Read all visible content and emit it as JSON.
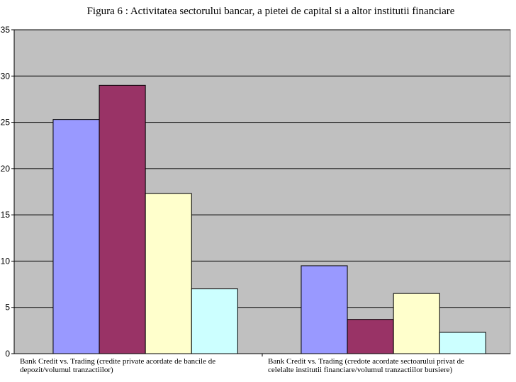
{
  "chart_data": {
    "type": "bar",
    "title": "Figura 6 : Activitatea sectorului bancar, a pietei de capital si a altor institutii financiare",
    "categories": [
      [
        "Bank Credit vs. Trading (credite private acordate de bancile de",
        "depozit/volumul tranzactiilor)"
      ],
      [
        "Bank Credit vs. Trading (credote acordate sectoarului privat de",
        "celelalte institutii financiare/volumul tranzactiilor bursiere)"
      ]
    ],
    "series": [
      {
        "values": [
          25.3,
          9.5
        ],
        "color": "#9999ff"
      },
      {
        "values": [
          29.0,
          3.7
        ],
        "color": "#993366"
      },
      {
        "values": [
          17.3,
          6.5
        ],
        "color": "#ffffcc"
      },
      {
        "values": [
          7.0,
          2.3
        ],
        "color": "#ccffff"
      }
    ],
    "ylim": [
      0,
      35
    ],
    "yticks": [
      0,
      5,
      10,
      15,
      20,
      25,
      30,
      35
    ],
    "plot_background": "#c0c0c0",
    "gridlines": true,
    "legend": "none"
  }
}
